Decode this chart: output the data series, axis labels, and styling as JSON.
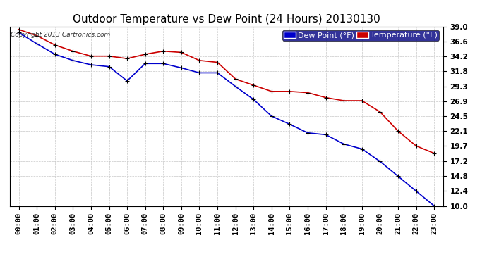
{
  "title": "Outdoor Temperature vs Dew Point (24 Hours) 20130130",
  "copyright": "Copyright 2013 Cartronics.com",
  "legend_dew": "Dew Point (°F)",
  "legend_temp": "Temperature (°F)",
  "x_labels": [
    "00:00",
    "01:00",
    "02:00",
    "03:00",
    "04:00",
    "05:00",
    "06:00",
    "07:00",
    "08:00",
    "09:00",
    "10:00",
    "11:00",
    "12:00",
    "13:00",
    "14:00",
    "15:00",
    "16:00",
    "17:00",
    "18:00",
    "19:00",
    "20:00",
    "21:00",
    "22:00",
    "23:00"
  ],
  "ylim": [
    10.0,
    39.0
  ],
  "yticks": [
    10.0,
    12.4,
    14.8,
    17.2,
    19.7,
    22.1,
    24.5,
    26.9,
    29.3,
    31.8,
    34.2,
    36.6,
    39.0
  ],
  "temperature": [
    38.5,
    37.5,
    36.0,
    35.0,
    34.2,
    34.2,
    33.8,
    34.5,
    35.0,
    34.8,
    33.5,
    33.2,
    30.5,
    29.5,
    28.5,
    28.5,
    28.3,
    27.5,
    27.0,
    27.0,
    25.2,
    22.1,
    19.7,
    18.5
  ],
  "dew_point": [
    38.0,
    36.2,
    34.5,
    33.5,
    32.8,
    32.5,
    30.2,
    33.0,
    33.0,
    32.3,
    31.5,
    31.5,
    29.3,
    27.2,
    24.5,
    23.2,
    21.8,
    21.5,
    20.0,
    19.2,
    17.2,
    14.8,
    12.4,
    10.0
  ],
  "temp_color": "#cc0000",
  "dew_color": "#0000cc",
  "marker_color": "#000000",
  "bg_color": "#ffffff",
  "grid_color": "#c8c8c8",
  "title_fontsize": 11,
  "tick_fontsize": 7.5,
  "legend_fontsize": 8
}
